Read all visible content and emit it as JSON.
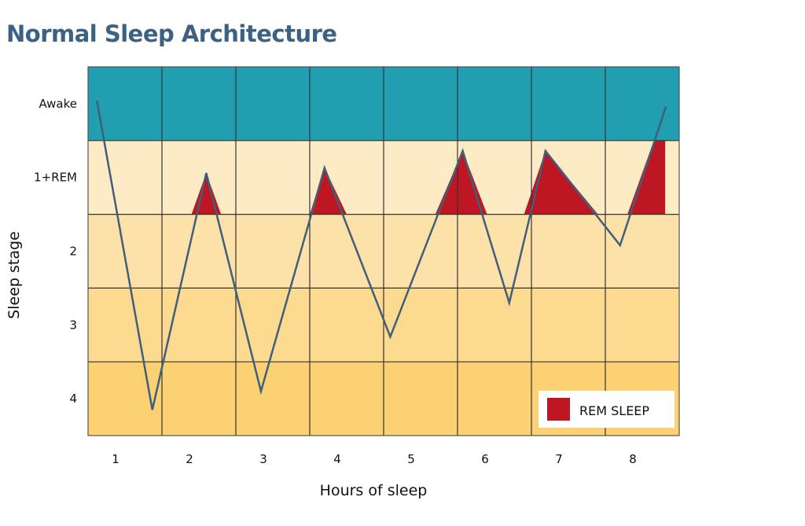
{
  "chart_data": {
    "type": "line",
    "title": "Normal Sleep Architecture",
    "xlabel": "Hours of sleep",
    "ylabel": "Sleep stage",
    "x_ticks": [
      "1",
      "2",
      "3",
      "4",
      "5",
      "6",
      "7",
      "8"
    ],
    "y_categories": [
      "Awake",
      "1+REM",
      "2",
      "3",
      "4"
    ],
    "xlim": [
      0,
      8
    ],
    "grid": true,
    "band_colors": [
      "#219fb1",
      "#fdebc6",
      "#fce2a8",
      "#fcda8f",
      "#fbd173"
    ],
    "line_color": "#3f5f7a",
    "rem_color": "#be1622",
    "series": [
      {
        "name": "Sleep stage",
        "points": [
          [
            0.12,
            -0.04
          ],
          [
            0.87,
            4.15
          ],
          [
            1.6,
            0.94
          ],
          [
            2.34,
            3.9
          ],
          [
            3.2,
            0.87
          ],
          [
            4.09,
            3.16
          ],
          [
            5.07,
            0.64
          ],
          [
            5.7,
            2.7
          ],
          [
            6.19,
            0.64
          ],
          [
            7.2,
            1.92
          ],
          [
            7.82,
            0.04
          ]
        ]
      }
    ],
    "rem_periods": [
      [
        1.4,
        1.8
      ],
      [
        3.0,
        3.5
      ],
      [
        4.7,
        5.4
      ],
      [
        5.9,
        6.9
      ],
      [
        7.3,
        7.81
      ]
    ],
    "legend": {
      "label": "REM SLEEP",
      "position": "bottom-right"
    }
  }
}
